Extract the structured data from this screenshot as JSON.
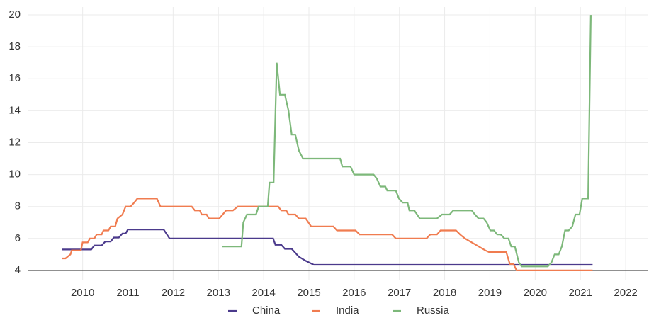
{
  "chart_data": {
    "type": "line",
    "xlim": [
      2009.3,
      2023.0
    ],
    "xticks": [
      {
        "value": 2010.5,
        "label": "2010"
      },
      {
        "value": 2011.5,
        "label": "2011"
      },
      {
        "value": 2012.5,
        "label": "2012"
      },
      {
        "value": 2013.5,
        "label": "2013"
      },
      {
        "value": 2014.5,
        "label": "2014"
      },
      {
        "value": 2015.5,
        "label": "2015"
      },
      {
        "value": 2016.5,
        "label": "2016"
      },
      {
        "value": 2017.5,
        "label": "2017"
      },
      {
        "value": 2018.5,
        "label": "2018"
      },
      {
        "value": 2019.5,
        "label": "2019"
      },
      {
        "value": 2020.5,
        "label": "2020"
      },
      {
        "value": 2021.5,
        "label": "2021"
      },
      {
        "value": 2022.5,
        "label": "2022"
      }
    ],
    "ylim": [
      3.42,
      20.49
    ],
    "yticks": [
      4,
      6,
      8,
      10,
      12,
      14,
      16,
      18,
      20
    ],
    "baseline": 4,
    "grid": true,
    "legend": "bottom",
    "series": [
      {
        "name": "China",
        "color": "#4b3a8c",
        "x": [
          2010.05,
          2010.69,
          2010.76,
          2010.92,
          2011.0,
          2011.12,
          2011.19,
          2011.3,
          2011.38,
          2011.45,
          2011.5,
          2012.29,
          2012.42,
          2014.71,
          2014.76,
          2014.89,
          2014.97,
          2015.12,
          2015.28,
          2015.43,
          2015.61,
          2021.77
        ],
        "values": [
          5.31,
          5.31,
          5.56,
          5.56,
          5.81,
          5.81,
          6.06,
          6.06,
          6.31,
          6.31,
          6.56,
          6.56,
          6.0,
          6.0,
          5.6,
          5.6,
          5.35,
          5.35,
          4.85,
          4.6,
          4.35,
          4.35
        ]
      },
      {
        "name": "India",
        "color": "#f07c50",
        "x": [
          2010.05,
          2010.12,
          2010.23,
          2010.26,
          2010.46,
          2010.5,
          2010.61,
          2010.66,
          2010.76,
          2010.81,
          2010.92,
          2010.96,
          2011.07,
          2011.12,
          2011.22,
          2011.27,
          2011.38,
          2011.45,
          2011.56,
          2011.64,
          2011.71,
          2012.14,
          2012.22,
          2012.91,
          2012.98,
          2013.09,
          2013.13,
          2013.24,
          2013.29,
          2013.52,
          2013.67,
          2013.82,
          2013.93,
          2014.82,
          2014.89,
          2015.0,
          2015.05,
          2015.2,
          2015.28,
          2015.43,
          2015.55,
          2016.04,
          2016.12,
          2016.53,
          2016.62,
          2017.34,
          2017.42,
          2018.1,
          2018.18,
          2018.33,
          2018.41,
          2018.75,
          2018.84,
          2018.95,
          2019.1,
          2019.25,
          2019.4,
          2019.48,
          2019.86,
          2019.94,
          2020.02,
          2020.09,
          2021.77
        ],
        "values": [
          4.75,
          4.75,
          5.0,
          5.25,
          5.25,
          5.75,
          5.75,
          6.0,
          6.0,
          6.25,
          6.25,
          6.5,
          6.5,
          6.75,
          6.75,
          7.25,
          7.5,
          8.0,
          8.0,
          8.25,
          8.5,
          8.5,
          8.0,
          8.0,
          7.75,
          7.75,
          7.5,
          7.5,
          7.25,
          7.25,
          7.75,
          7.75,
          8.0,
          8.0,
          7.75,
          7.75,
          7.5,
          7.5,
          7.25,
          7.25,
          6.75,
          6.75,
          6.5,
          6.5,
          6.25,
          6.25,
          6.0,
          6.0,
          6.25,
          6.25,
          6.5,
          6.5,
          6.25,
          6.0,
          5.75,
          5.5,
          5.25,
          5.15,
          5.15,
          4.4,
          4.4,
          4.0,
          4.0
        ]
      },
      {
        "name": "Russia",
        "color": "#7db87a",
        "x": [
          2013.59,
          2014.01,
          2014.05,
          2014.13,
          2014.33,
          2014.39,
          2014.59,
          2014.63,
          2014.72,
          2014.79,
          2014.86,
          2014.97,
          2015.05,
          2015.12,
          2015.2,
          2015.28,
          2015.37,
          2016.19,
          2016.24,
          2016.42,
          2016.5,
          2016.93,
          2017.0,
          2017.08,
          2017.19,
          2017.23,
          2017.42,
          2017.49,
          2017.57,
          2017.68,
          2017.72,
          2017.83,
          2017.95,
          2018.33,
          2018.44,
          2018.61,
          2018.69,
          2019.1,
          2019.17,
          2019.25,
          2019.36,
          2019.43,
          2019.51,
          2019.59,
          2019.66,
          2019.74,
          2019.82,
          2019.91,
          2019.97,
          2020.05,
          2020.14,
          2020.2,
          2020.78,
          2020.86,
          2020.93,
          2021.02,
          2021.09,
          2021.16,
          2021.24,
          2021.32,
          2021.39,
          2021.48,
          2021.54,
          2021.67,
          2021.73
        ],
        "values": [
          5.5,
          5.5,
          7.0,
          7.5,
          7.5,
          8.0,
          8.0,
          9.5,
          9.5,
          17.0,
          15.0,
          15.0,
          14.0,
          12.5,
          12.5,
          11.5,
          11.0,
          11.0,
          10.5,
          10.5,
          10.0,
          10.0,
          9.75,
          9.25,
          9.25,
          9.0,
          9.0,
          8.5,
          8.25,
          8.25,
          7.75,
          7.75,
          7.25,
          7.25,
          7.5,
          7.5,
          7.75,
          7.75,
          7.5,
          7.25,
          7.25,
          7.0,
          6.5,
          6.5,
          6.25,
          6.25,
          6.0,
          6.0,
          5.5,
          5.5,
          4.5,
          4.25,
          4.25,
          4.5,
          5.0,
          5.0,
          5.5,
          6.5,
          6.5,
          6.75,
          7.5,
          7.5,
          8.5,
          8.5,
          20.0
        ]
      }
    ]
  }
}
